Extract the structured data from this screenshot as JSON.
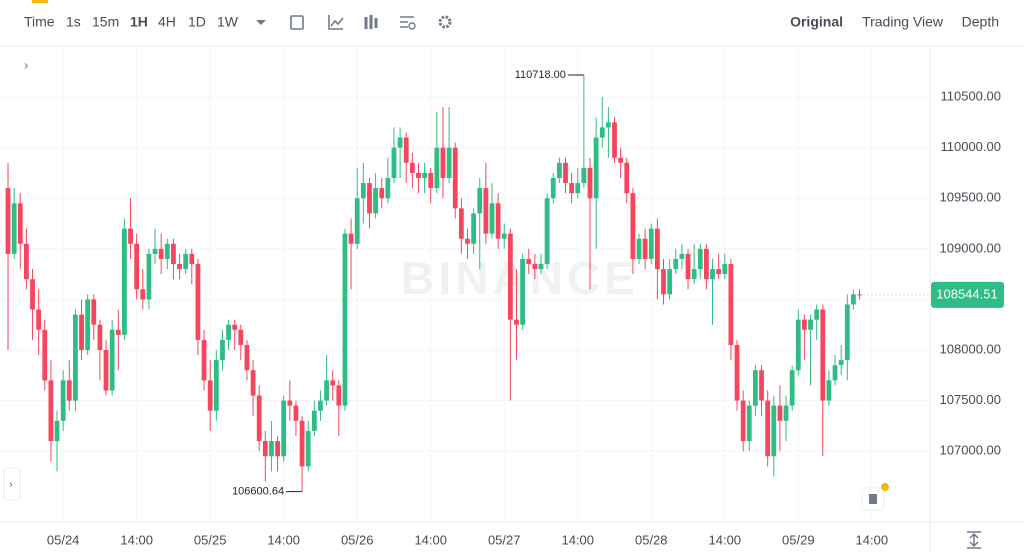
{
  "toolbar": {
    "intervals": [
      "Time",
      "1s",
      "15m",
      "1H",
      "4H",
      "1D",
      "1W"
    ],
    "views": [
      "Original",
      "Trading View",
      "Depth"
    ]
  },
  "chart_data": {
    "type": "candlestick",
    "watermark": "BINANCE",
    "up_color": "#2ebd85",
    "down_color": "#f6465d",
    "grid": true,
    "xlim": [
      -1.31,
      150.5
    ],
    "xticks": [
      {
        "value": 9,
        "label": "05/24"
      },
      {
        "value": 21,
        "label": "14:00"
      },
      {
        "value": 33,
        "label": "05/25"
      },
      {
        "value": 45,
        "label": "14:00"
      },
      {
        "value": 57,
        "label": "05/26"
      },
      {
        "value": 69,
        "label": "14:00"
      },
      {
        "value": 81,
        "label": "05/27"
      },
      {
        "value": 93,
        "label": "14:00"
      },
      {
        "value": 105,
        "label": "05/28"
      },
      {
        "value": 117,
        "label": "14:00"
      },
      {
        "value": 129,
        "label": "05/29"
      },
      {
        "value": 141,
        "label": "14:00"
      }
    ],
    "ylim": [
      106300,
      110985
    ],
    "yticks": [
      {
        "value": 107000,
        "label": "107000.00"
      },
      {
        "value": 107500,
        "label": "107500.00"
      },
      {
        "value": 108000,
        "label": "108000.00"
      },
      {
        "value": 108500,
        "label": "108500.00"
      },
      {
        "value": 109000,
        "label": "109000.00"
      },
      {
        "value": 109500,
        "label": "109500.00"
      },
      {
        "value": 110000,
        "label": "110000.00"
      },
      {
        "value": 110500,
        "label": "110500.00"
      }
    ],
    "last_price": {
      "value": 108544.51,
      "label": "108544.51"
    },
    "annotations": [
      {
        "index": 94,
        "value": 110718,
        "label": "110718.00"
      },
      {
        "index": 48,
        "value": 106600.64,
        "label": "106600.64"
      }
    ],
    "ohlc": [
      [
        109600,
        109850,
        108000,
        108950
      ],
      [
        108950,
        109600,
        108900,
        109450
      ],
      [
        109450,
        109550,
        108800,
        109050
      ],
      [
        109050,
        109200,
        108600,
        108700
      ],
      [
        108700,
        108800,
        108100,
        108400
      ],
      [
        108400,
        108600,
        107950,
        108200
      ],
      [
        108200,
        108300,
        107600,
        107700
      ],
      [
        107700,
        107900,
        106900,
        107100
      ],
      [
        107100,
        107400,
        106800,
        107300
      ],
      [
        107300,
        107800,
        107200,
        107700
      ],
      [
        107700,
        107900,
        107400,
        107500
      ],
      [
        107500,
        108400,
        107400,
        108350
      ],
      [
        108350,
        108500,
        107900,
        108000
      ],
      [
        108000,
        108550,
        107950,
        108500
      ],
      [
        108500,
        108550,
        108100,
        108250
      ],
      [
        108250,
        108300,
        107700,
        108000
      ],
      [
        108000,
        108100,
        107550,
        107600
      ],
      [
        107600,
        108300,
        107550,
        108200
      ],
      [
        108200,
        108400,
        107800,
        108150
      ],
      [
        108150,
        109300,
        108100,
        109200
      ],
      [
        109200,
        109500,
        108900,
        109050
      ],
      [
        109050,
        109150,
        108500,
        108600
      ],
      [
        108600,
        108800,
        108400,
        108500
      ],
      [
        108500,
        109000,
        108400,
        108950
      ],
      [
        108950,
        109200,
        108850,
        109000
      ],
      [
        109000,
        109150,
        108750,
        108900
      ],
      [
        108900,
        109100,
        108800,
        109050
      ],
      [
        109050,
        109100,
        108700,
        108850
      ],
      [
        108850,
        108950,
        108700,
        108800
      ],
      [
        108800,
        109000,
        108750,
        108950
      ],
      [
        108950,
        109000,
        108650,
        108850
      ],
      [
        108850,
        108900,
        107950,
        108100
      ],
      [
        108100,
        108200,
        107600,
        107700
      ],
      [
        107700,
        107900,
        107200,
        107400
      ],
      [
        107400,
        108000,
        107300,
        107900
      ],
      [
        107900,
        108200,
        107800,
        108100
      ],
      [
        108100,
        108300,
        108000,
        108250
      ],
      [
        108250,
        108300,
        108000,
        108200
      ],
      [
        108200,
        108250,
        107900,
        108050
      ],
      [
        108050,
        108100,
        107700,
        107800
      ],
      [
        107800,
        107900,
        107350,
        107550
      ],
      [
        107550,
        107650,
        107000,
        107100
      ],
      [
        107100,
        107200,
        106700,
        106950
      ],
      [
        106950,
        107300,
        106800,
        107100
      ],
      [
        107100,
        107150,
        106800,
        106950
      ],
      [
        106950,
        107550,
        106900,
        107500
      ],
      [
        107500,
        107700,
        107300,
        107450
      ],
      [
        107450,
        107500,
        107150,
        107300
      ],
      [
        107300,
        107350,
        106600.64,
        106850
      ],
      [
        106850,
        107300,
        106800,
        107200
      ],
      [
        107200,
        107500,
        107150,
        107400
      ],
      [
        107400,
        107600,
        107300,
        107500
      ],
      [
        107500,
        107950,
        107450,
        107700
      ],
      [
        107700,
        107800,
        107500,
        107650
      ],
      [
        107650,
        107700,
        107150,
        107450
      ],
      [
        107450,
        109200,
        107400,
        109150
      ],
      [
        109150,
        109300,
        108600,
        109050
      ],
      [
        109050,
        109800,
        109000,
        109500
      ],
      [
        109500,
        109850,
        109250,
        109650
      ],
      [
        109650,
        109700,
        109200,
        109350
      ],
      [
        109350,
        109750,
        109300,
        109600
      ],
      [
        109600,
        109700,
        109400,
        109500
      ],
      [
        109500,
        109900,
        109450,
        109700
      ],
      [
        109700,
        110200,
        109650,
        110000
      ],
      [
        110000,
        110200,
        109700,
        110100
      ],
      [
        110100,
        110150,
        109650,
        109850
      ],
      [
        109850,
        109950,
        109600,
        109750
      ],
      [
        109750,
        109850,
        109550,
        109700
      ],
      [
        109700,
        109850,
        109550,
        109750
      ],
      [
        109750,
        109800,
        109450,
        109600
      ],
      [
        109600,
        110350,
        109550,
        110000
      ],
      [
        110000,
        110400,
        109500,
        109700
      ],
      [
        109700,
        110400,
        109650,
        110000
      ],
      [
        110000,
        110050,
        109300,
        109400
      ],
      [
        109400,
        109500,
        108950,
        109100
      ],
      [
        109100,
        109200,
        108900,
        109050
      ],
      [
        109050,
        109400,
        108950,
        109350
      ],
      [
        109350,
        109700,
        108800,
        109600
      ],
      [
        109600,
        109850,
        109050,
        109150
      ],
      [
        109150,
        109650,
        109100,
        109450
      ],
      [
        109450,
        109550,
        109000,
        109100
      ],
      [
        109100,
        109250,
        109000,
        109150
      ],
      [
        109150,
        109200,
        107500,
        108300
      ],
      [
        108300,
        108800,
        107900,
        108250
      ],
      [
        108250,
        108950,
        108200,
        108900
      ],
      [
        108900,
        109000,
        108750,
        108850
      ],
      [
        108850,
        108950,
        108700,
        108800
      ],
      [
        108800,
        108950,
        108750,
        108850
      ],
      [
        108850,
        109550,
        108800,
        109500
      ],
      [
        109500,
        109750,
        109450,
        109700
      ],
      [
        109700,
        109900,
        109650,
        109850
      ],
      [
        109850,
        109900,
        109550,
        109650
      ],
      [
        109650,
        109750,
        109450,
        109550
      ],
      [
        109550,
        109800,
        109500,
        109650
      ],
      [
        109650,
        110718,
        109600,
        109800
      ],
      [
        109800,
        109900,
        108600,
        109500
      ],
      [
        109500,
        110300,
        109000,
        110100
      ],
      [
        110100,
        110500,
        110000,
        110200
      ],
      [
        110200,
        110400,
        109900,
        110250
      ],
      [
        110250,
        110300,
        109850,
        109900
      ],
      [
        109900,
        110000,
        109700,
        109850
      ],
      [
        109850,
        109900,
        109450,
        109550
      ],
      [
        109550,
        109600,
        108750,
        108900
      ],
      [
        108900,
        109150,
        108850,
        109100
      ],
      [
        109100,
        109200,
        108800,
        108900
      ],
      [
        108900,
        109250,
        108850,
        109200
      ],
      [
        109200,
        109300,
        108500,
        108800
      ],
      [
        108800,
        108900,
        108450,
        108550
      ],
      [
        108550,
        108900,
        108500,
        108800
      ],
      [
        108800,
        109000,
        108750,
        108900
      ],
      [
        108900,
        109050,
        108800,
        108950
      ],
      [
        108950,
        109000,
        108600,
        108700
      ],
      [
        108700,
        109050,
        108650,
        108800
      ],
      [
        108800,
        109050,
        108700,
        109000
      ],
      [
        109000,
        109050,
        108600,
        108700
      ],
      [
        108700,
        108900,
        108250,
        108800
      ],
      [
        108800,
        108950,
        108700,
        108750
      ],
      [
        108750,
        108950,
        108700,
        108850
      ],
      [
        108850,
        108900,
        107900,
        108050
      ],
      [
        108050,
        108100,
        107400,
        107500
      ],
      [
        107500,
        107600,
        107000,
        107100
      ],
      [
        107100,
        107500,
        107000,
        107450
      ],
      [
        107450,
        107850,
        107350,
        107800
      ],
      [
        107800,
        107850,
        107350,
        107500
      ],
      [
        107500,
        107600,
        106850,
        106950
      ],
      [
        106950,
        107550,
        106750,
        107450
      ],
      [
        107450,
        107650,
        107000,
        107300
      ],
      [
        107300,
        107550,
        107100,
        107450
      ],
      [
        107450,
        107850,
        107400,
        107800
      ],
      [
        107800,
        108400,
        107750,
        108300
      ],
      [
        108300,
        108350,
        107900,
        108200
      ],
      [
        108200,
        108350,
        107650,
        108300
      ],
      [
        108300,
        108450,
        108100,
        108400
      ],
      [
        108400,
        108450,
        106950,
        107500
      ],
      [
        107500,
        107800,
        107450,
        107700
      ],
      [
        107700,
        107950,
        107650,
        107850
      ],
      [
        107850,
        108050,
        107750,
        107900
      ],
      [
        107900,
        108550,
        107700,
        108450
      ],
      [
        108450,
        108600,
        108400,
        108550
      ],
      [
        108550,
        108600,
        108500,
        108544.51
      ]
    ]
  }
}
